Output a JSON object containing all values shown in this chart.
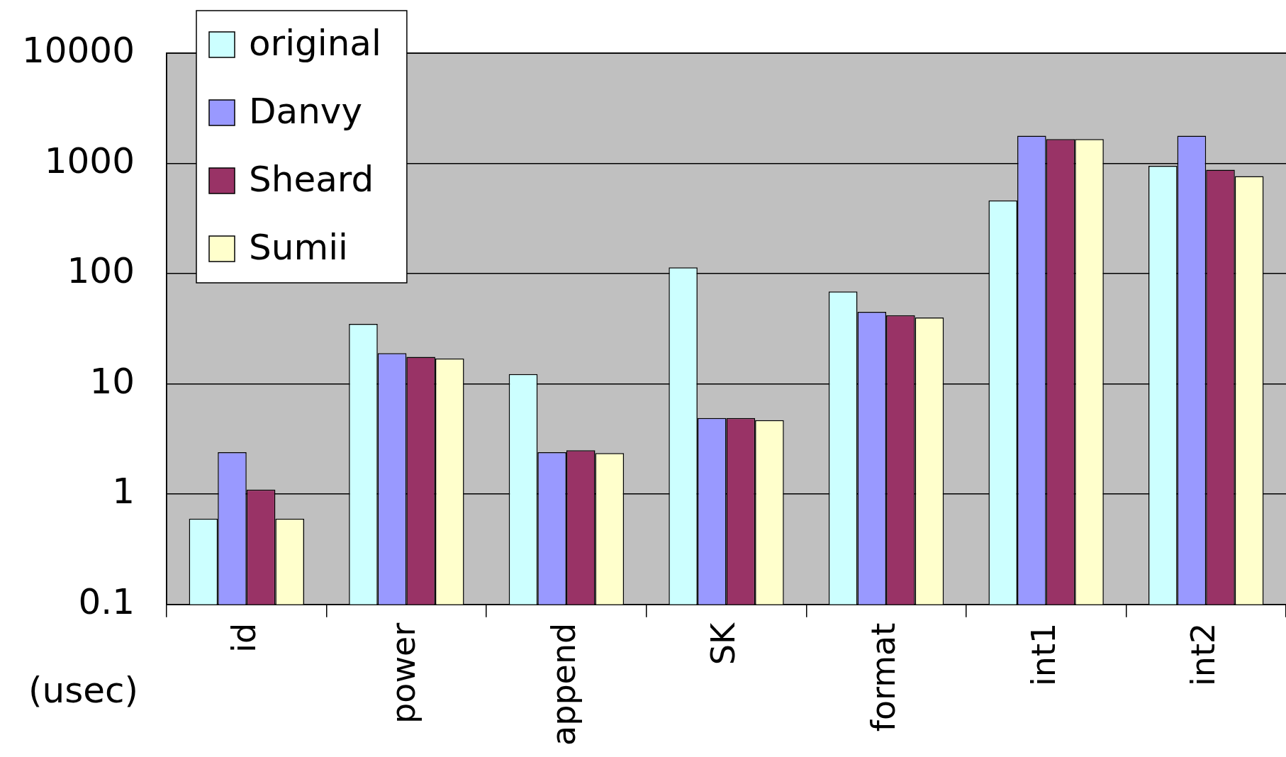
{
  "chart_data": {
    "type": "bar",
    "ylabel": "(usec)",
    "categories": [
      "id",
      "power",
      "append",
      "SK",
      "format",
      "int1",
      "int2"
    ],
    "series": [
      {
        "name": "original",
        "color": "#ccffff",
        "values": [
          0.6,
          35,
          12.3,
          114,
          69,
          462,
          950
        ]
      },
      {
        "name": "Danvy",
        "color": "#9999ff",
        "values": [
          2.4,
          19,
          2.4,
          4.9,
          45,
          1780,
          1780
        ]
      },
      {
        "name": "Sheard",
        "color": "#993366",
        "values": [
          1.1,
          17.6,
          2.5,
          4.9,
          42,
          1660,
          877
        ]
      },
      {
        "name": "Sumii",
        "color": "#ffffcc",
        "values": [
          0.6,
          17,
          2.36,
          4.7,
          40,
          1660,
          766
        ]
      }
    ],
    "log": true,
    "ylim": [
      0.1,
      10000
    ],
    "yticks": [
      0.1,
      1,
      10,
      100,
      1000,
      10000
    ],
    "grid": "y",
    "legend": "top left"
  }
}
